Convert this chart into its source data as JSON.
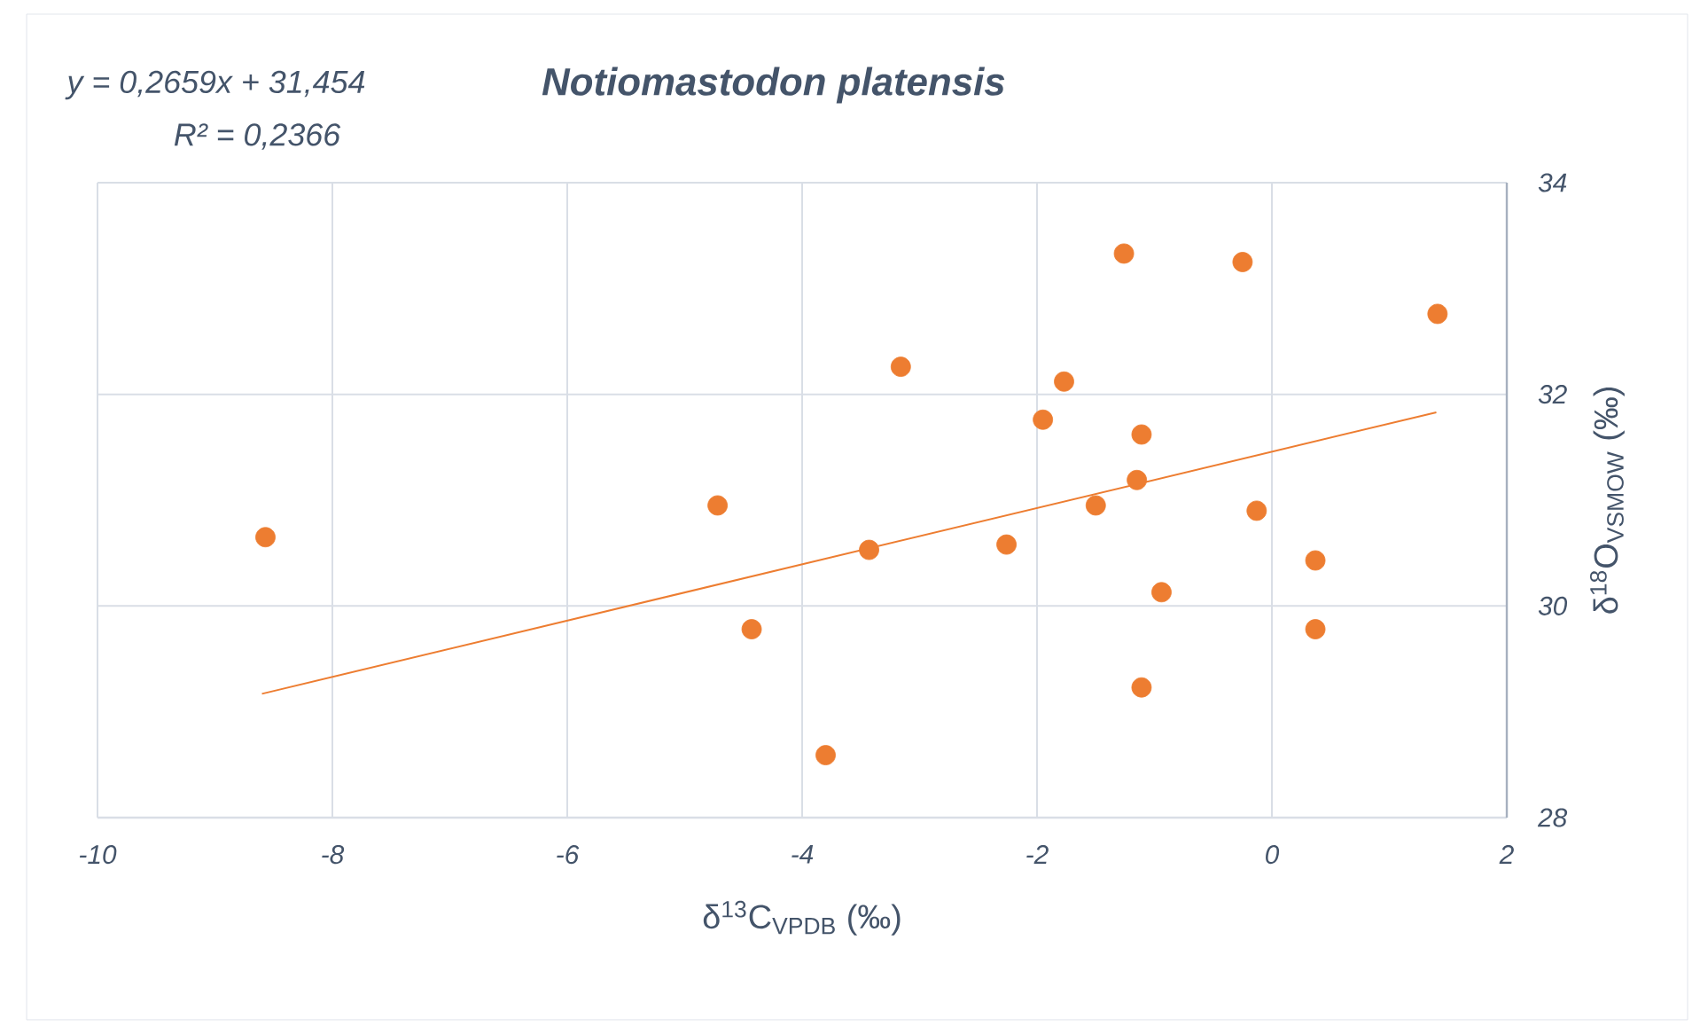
{
  "chart_data": {
    "type": "scatter",
    "title": "Notiomastodon platensis",
    "annotations": [
      "y = 0,2659x + 31,454",
      "R² = 0,2366"
    ],
    "xlabel": "δ$^{13}$C$_{VPDB}$ (‰)",
    "ylabel": "δ$^{18}$O$_{VSMOW}$ (‰)",
    "xlim": [
      -10,
      2
    ],
    "ylim": [
      28,
      34
    ],
    "xticks": [
      -10,
      -8,
      -6,
      -4,
      -2,
      0,
      2
    ],
    "yticks": [
      28,
      30,
      32,
      34
    ],
    "grid": true,
    "series": [
      {
        "type": "scatter",
        "color": "#ed7d31",
        "marker": "circle",
        "x": [
          -8.57,
          -4.72,
          -4.43,
          -3.8,
          -3.43,
          -3.16,
          -2.26,
          -1.95,
          -1.77,
          -1.5,
          -1.26,
          -1.15,
          -1.11,
          -1.11,
          -0.94,
          -0.25,
          -0.13,
          0.37,
          0.37,
          1.41
        ],
        "values": [
          30.65,
          30.95,
          29.78,
          28.59,
          30.53,
          32.26,
          30.58,
          31.76,
          32.12,
          30.95,
          33.33,
          31.19,
          31.62,
          29.23,
          30.13,
          33.25,
          30.9,
          30.43,
          29.78,
          32.76
        ]
      },
      {
        "type": "line",
        "color": "#ed7d31",
        "line_style": "solid",
        "x": [
          -8.6,
          1.4
        ],
        "values": [
          29.17,
          31.83
        ]
      }
    ]
  }
}
